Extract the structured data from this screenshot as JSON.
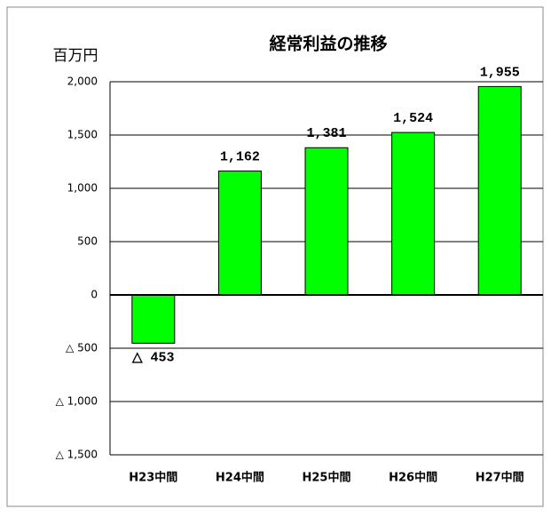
{
  "chart_data": {
    "type": "bar",
    "title": "経常利益の推移",
    "unit_label": "百万円",
    "categories": [
      "H23中間",
      "H24中間",
      "H25中間",
      "H26中間",
      "H27中間"
    ],
    "values": [
      -453,
      1162,
      1381,
      1524,
      1955
    ],
    "value_labels": [
      "△ 453",
      "1,162",
      "1,381",
      "1,524",
      "1,955"
    ],
    "color": "#00ff00",
    "ylim": [
      -1500,
      2000
    ],
    "yticks": [
      {
        "value": -1500,
        "label": "△ 1,500"
      },
      {
        "value": -1000,
        "label": "△ 1,000"
      },
      {
        "value": -500,
        "label": "△ 500"
      },
      0,
      500,
      {
        "value": 1000,
        "label": "1,000"
      },
      {
        "value": 1500,
        "label": "1,500"
      },
      {
        "value": 2000,
        "label": "2,000"
      }
    ],
    "grid": true
  }
}
